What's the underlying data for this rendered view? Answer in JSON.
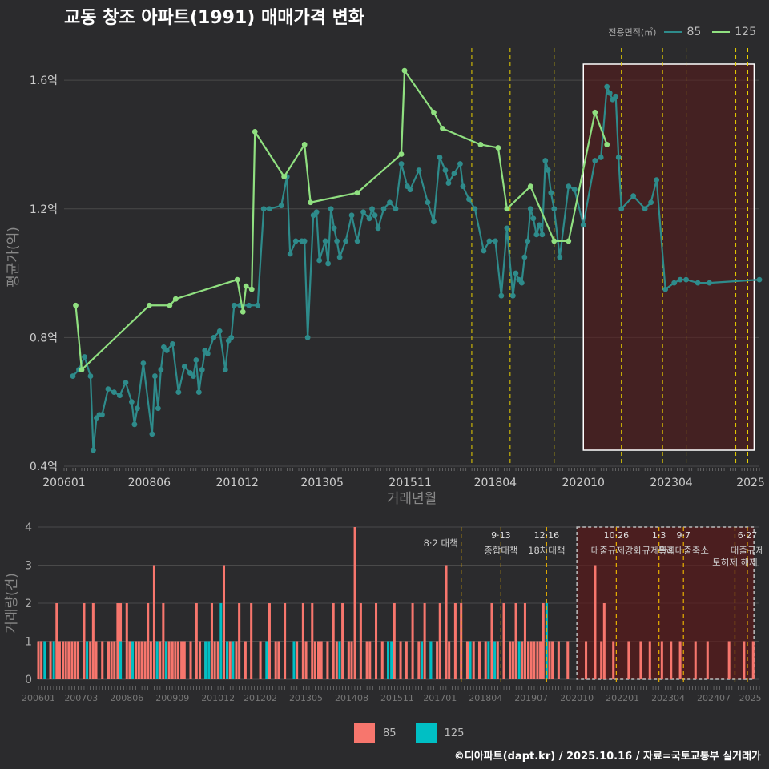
{
  "title": "교동 창조 아파트(1991) 매매가격 변화",
  "footer": "©디아파트(dapt.kr) / 2025.10.16 / 자료=국토교통부 실거래가",
  "colors": {
    "bg": "#2b2b2d",
    "grid": "#4a4a4a",
    "s85": "#2e8b8b",
    "s125": "#90e080",
    "bar85": "#f7766d",
    "bar125": "#00bfc4",
    "policy": "#e8d000",
    "highlight": "#5a1a1a"
  },
  "legend_top": {
    "label": "전용면적(㎡)",
    "items": [
      "85",
      "125"
    ]
  },
  "legend_bottom": {
    "items": [
      "85",
      "125"
    ]
  },
  "chart_data": [
    {
      "type": "line",
      "title": "교동 창조 아파트(1991) 매매가격 변화",
      "xlabel": "거래년월",
      "ylabel": "평균가(억)",
      "ylim": [
        0.4,
        1.7
      ],
      "yticks": [
        "0.4억",
        "0.8억",
        "1.2억",
        "1.6억"
      ],
      "ytick_values": [
        0.4,
        0.8,
        1.2,
        1.6
      ],
      "xlim": [
        2006.0,
        2025.75
      ],
      "xticks": [
        "200601",
        "200806",
        "201012",
        "201305",
        "201511",
        "201804",
        "202010",
        "202304",
        "2025"
      ],
      "xtick_values": [
        2006.0,
        2008.42,
        2010.92,
        2013.33,
        2015.83,
        2018.25,
        2020.75,
        2023.25,
        2025.5
      ],
      "highlight_range": [
        2020.75,
        2025.6
      ],
      "policy_dates": [
        2017.58,
        2018.67,
        2019.92,
        2021.83,
        2023.0,
        2023.67,
        2025.08,
        2025.42
      ],
      "series": [
        {
          "name": "85",
          "x": [
            2006.25,
            2006.42,
            2006.58,
            2006.75,
            2006.83,
            2006.92,
            2007.0,
            2007.08,
            2007.25,
            2007.42,
            2007.58,
            2007.75,
            2007.92,
            2008.0,
            2008.08,
            2008.25,
            2008.5,
            2008.58,
            2008.67,
            2008.75,
            2008.83,
            2008.92,
            2009.08,
            2009.25,
            2009.42,
            2009.58,
            2009.67,
            2009.75,
            2009.83,
            2009.92,
            2010.0,
            2010.08,
            2010.25,
            2010.42,
            2010.58,
            2010.67,
            2010.75,
            2010.83,
            2011.0,
            2011.25,
            2011.5,
            2011.67,
            2011.83,
            2012.17,
            2012.33,
            2012.42,
            2012.58,
            2012.75,
            2012.83,
            2012.92,
            2013.08,
            2013.17,
            2013.25,
            2013.42,
            2013.5,
            2013.58,
            2013.67,
            2013.75,
            2013.83,
            2014.0,
            2014.17,
            2014.33,
            2014.5,
            2014.67,
            2014.75,
            2014.83,
            2014.92,
            2015.08,
            2015.25,
            2015.42,
            2015.58,
            2015.75,
            2015.83,
            2016.08,
            2016.33,
            2016.5,
            2016.67,
            2016.83,
            2016.92,
            2017.08,
            2017.25,
            2017.33,
            2017.5,
            2017.67,
            2017.92,
            2018.08,
            2018.25,
            2018.42,
            2018.58,
            2018.75,
            2018.83,
            2018.92,
            2019.0,
            2019.08,
            2019.17,
            2019.25,
            2019.33,
            2019.42,
            2019.5,
            2019.58,
            2019.67,
            2019.75,
            2019.83,
            2019.92,
            2020.08,
            2020.33,
            2020.5,
            2020.75,
            2021.08,
            2021.25,
            2021.42,
            2021.5,
            2021.58,
            2021.67,
            2021.75,
            2021.83,
            2022.17,
            2022.5,
            2022.67,
            2022.83,
            2023.08,
            2023.33,
            2023.5,
            2023.67,
            2024.0,
            2024.33,
            2025.75
          ],
          "values": [
            0.68,
            0.7,
            0.74,
            0.68,
            0.45,
            0.55,
            0.56,
            0.56,
            0.64,
            0.63,
            0.62,
            0.66,
            0.6,
            0.53,
            0.58,
            0.72,
            0.5,
            0.68,
            0.58,
            0.7,
            0.77,
            0.76,
            0.78,
            0.63,
            0.71,
            0.69,
            0.68,
            0.73,
            0.63,
            0.7,
            0.76,
            0.75,
            0.8,
            0.82,
            0.7,
            0.79,
            0.8,
            0.9,
            0.9,
            0.9,
            0.9,
            1.2,
            1.2,
            1.21,
            1.3,
            1.06,
            1.1,
            1.1,
            1.1,
            0.8,
            1.18,
            1.19,
            1.04,
            1.1,
            1.03,
            1.2,
            1.14,
            1.1,
            1.05,
            1.1,
            1.18,
            1.1,
            1.19,
            1.17,
            1.2,
            1.18,
            1.14,
            1.2,
            1.22,
            1.2,
            1.34,
            1.27,
            1.26,
            1.32,
            1.22,
            1.16,
            1.36,
            1.32,
            1.28,
            1.31,
            1.34,
            1.27,
            1.23,
            1.2,
            1.07,
            1.1,
            1.1,
            0.93,
            1.14,
            0.93,
            1.0,
            0.98,
            0.97,
            1.05,
            1.1,
            1.2,
            1.17,
            1.12,
            1.15,
            1.12,
            1.35,
            1.32,
            1.25,
            1.2,
            1.05,
            1.27,
            1.26,
            1.15,
            1.35,
            1.36,
            1.58,
            1.56,
            1.54,
            1.55,
            1.36,
            1.2,
            1.24,
            1.2,
            1.22,
            1.29,
            0.95,
            0.97,
            0.98,
            0.98,
            0.97,
            0.97,
            0.98
          ]
        },
        {
          "name": "125",
          "x": [
            2006.33,
            2006.5,
            2008.42,
            2009.0,
            2009.17,
            2010.92,
            2011.08,
            2011.17,
            2011.33,
            2011.42,
            2012.25,
            2012.83,
            2013.0,
            2014.33,
            2015.58,
            2015.67,
            2016.5,
            2016.75,
            2017.83,
            2018.33,
            2018.58,
            2019.25,
            2019.92,
            2020.33,
            2021.08,
            2021.42
          ],
          "values": [
            0.9,
            0.7,
            0.9,
            0.9,
            0.92,
            0.98,
            0.88,
            0.96,
            0.95,
            1.44,
            1.3,
            1.4,
            1.22,
            1.25,
            1.37,
            1.63,
            1.5,
            1.45,
            1.4,
            1.39,
            1.2,
            1.27,
            1.1,
            1.1,
            1.5,
            1.4
          ]
        }
      ]
    },
    {
      "type": "bar",
      "xlabel": "",
      "ylabel": "거래량(건)",
      "ylim": [
        0,
        4
      ],
      "yticks": [
        "0",
        "1",
        "2",
        "3",
        "4"
      ],
      "ytick_values": [
        0,
        1,
        2,
        3,
        4
      ],
      "xlim": [
        2006.0,
        2025.75
      ],
      "xticks": [
        "200601",
        "200703",
        "200806",
        "200909",
        "201012",
        "201202",
        "201305",
        "201408",
        "201511",
        "201701",
        "201804",
        "201907",
        "202010",
        "202201",
        "202304",
        "202407",
        "2025"
      ],
      "xtick_values": [
        2006.0,
        2007.17,
        2008.42,
        2009.67,
        2010.92,
        2012.08,
        2013.33,
        2014.58,
        2015.83,
        2017.0,
        2018.25,
        2019.5,
        2020.75,
        2022.0,
        2023.25,
        2024.5,
        2025.5
      ],
      "highlight_range": [
        2020.75,
        2025.6
      ],
      "policies": [
        {
          "x": 2017.58,
          "date": "",
          "label": "8·2 대책"
        },
        {
          "x": 2018.67,
          "date": "9·13",
          "label": "종합대책"
        },
        {
          "x": 2019.92,
          "date": "12·16",
          "label": "18차대책"
        },
        {
          "x": 2021.83,
          "date": "10·26",
          "label": "대출규제강화"
        },
        {
          "x": 2023.0,
          "date": "1·3",
          "label": "규제완화"
        },
        {
          "x": 2023.67,
          "date": "9·7",
          "label": "특례대출축소"
        },
        {
          "x": 2025.08,
          "date": "",
          "label": "토허제 해제"
        },
        {
          "x": 2025.42,
          "date": "6·27",
          "label": "대출규제"
        }
      ],
      "series": [
        {
          "name": "85",
          "x": [
            2006.0,
            2006.08,
            2006.33,
            2006.5,
            2006.58,
            2006.67,
            2006.75,
            2006.83,
            2006.92,
            2007.0,
            2007.08,
            2007.25,
            2007.42,
            2007.5,
            2007.58,
            2007.75,
            2007.92,
            2008.0,
            2008.08,
            2008.17,
            2008.25,
            2008.42,
            2008.5,
            2008.58,
            2008.67,
            2008.75,
            2008.83,
            2008.92,
            2009.0,
            2009.08,
            2009.17,
            2009.25,
            2009.33,
            2009.42,
            2009.58,
            2009.67,
            2009.75,
            2009.83,
            2009.92,
            2010.0,
            2010.17,
            2010.33,
            2010.42,
            2010.58,
            2010.75,
            2010.83,
            2010.92,
            2011.08,
            2011.25,
            2011.42,
            2011.5,
            2011.67,
            2011.83,
            2012.08,
            2012.33,
            2012.5,
            2012.58,
            2012.75,
            2013.08,
            2013.25,
            2013.33,
            2013.5,
            2013.58,
            2013.67,
            2013.75,
            2013.92,
            2014.08,
            2014.17,
            2014.33,
            2014.5,
            2014.58,
            2014.67,
            2014.83,
            2015.0,
            2015.08,
            2015.25,
            2015.42,
            2015.58,
            2015.75,
            2015.92,
            2016.08,
            2016.25,
            2016.42,
            2016.58,
            2016.75,
            2016.92,
            2017.0,
            2017.17,
            2017.25,
            2017.42,
            2017.58,
            2017.75,
            2017.92,
            2018.08,
            2018.25,
            2018.42,
            2018.58,
            2018.75,
            2018.92,
            2019.0,
            2019.08,
            2019.25,
            2019.33,
            2019.42,
            2019.5,
            2019.58,
            2019.67,
            2019.75,
            2019.83,
            2020.0,
            2020.08,
            2020.25,
            2020.5,
            2021.0,
            2021.25,
            2021.42,
            2021.5,
            2021.75,
            2022.17,
            2022.5,
            2022.75,
            2023.08,
            2023.33,
            2023.58,
            2024.0,
            2024.33,
            2024.92,
            2025.33,
            2025.58
          ],
          "values": [
            1,
            1,
            1,
            2,
            1,
            1,
            1,
            1,
            1,
            1,
            1,
            2,
            1,
            2,
            1,
            1,
            1,
            1,
            1,
            2,
            2,
            2,
            1,
            1,
            1,
            1,
            1,
            1,
            2,
            1,
            3,
            1,
            1,
            2,
            1,
            1,
            1,
            1,
            1,
            1,
            1,
            2,
            1,
            1,
            2,
            1,
            1,
            3,
            1,
            1,
            2,
            1,
            2,
            1,
            2,
            1,
            1,
            2,
            1,
            2,
            1,
            2,
            1,
            1,
            1,
            1,
            2,
            1,
            2,
            1,
            1,
            4,
            2,
            1,
            1,
            2,
            1,
            1,
            2,
            1,
            1,
            2,
            1,
            2,
            1,
            1,
            2,
            3,
            1,
            2,
            2,
            1,
            1,
            1,
            1,
            2,
            1,
            2,
            1,
            1,
            2,
            1,
            2,
            1,
            1,
            1,
            1,
            1,
            2,
            1,
            1,
            1,
            1,
            1,
            3,
            1,
            2,
            1,
            1,
            1,
            1,
            1,
            1,
            1,
            1,
            1,
            1,
            1,
            1
          ]
        },
        {
          "name": "125",
          "x": [
            2006.17,
            2006.42,
            2007.33,
            2008.25,
            2008.58,
            2009.25,
            2009.5,
            2010.58,
            2010.67,
            2011.0,
            2011.17,
            2011.33,
            2012.25,
            2013.0,
            2014.25,
            2015.58,
            2015.67,
            2016.5,
            2016.75,
            2017.83,
            2018.33,
            2018.5,
            2019.17,
            2019.92
          ],
          "values": [
            1,
            1,
            1,
            1,
            1,
            1,
            1,
            1,
            1,
            2,
            1,
            1,
            1,
            1,
            1,
            1,
            1,
            1,
            1,
            1,
            1,
            1,
            1,
            2
          ]
        }
      ]
    }
  ]
}
